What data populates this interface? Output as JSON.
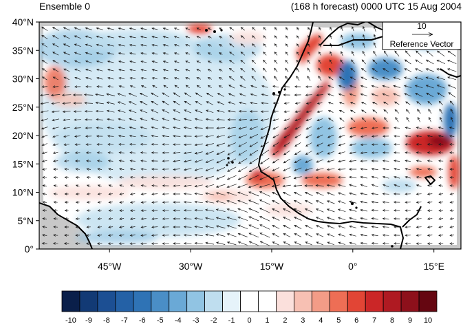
{
  "header": {
    "ensemble_label": "Ensemble 0",
    "forecast_label": "(168 h forecast) 0000 UTC 15 Aug 2004"
  },
  "map": {
    "projection": "cylindrical equidistant",
    "lon_range": [
      -58,
      20
    ],
    "lat_range": [
      0,
      40
    ],
    "lat_ticks": [
      {
        "value": 0,
        "label": "0°"
      },
      {
        "value": 5,
        "label": "5°N"
      },
      {
        "value": 10,
        "label": "10°N"
      },
      {
        "value": 15,
        "label": "15°N"
      },
      {
        "value": 20,
        "label": "20°N"
      },
      {
        "value": 25,
        "label": "25°N"
      },
      {
        "value": 30,
        "label": "30°N"
      },
      {
        "value": 35,
        "label": "35°N"
      },
      {
        "value": 40,
        "label": "40°N"
      }
    ],
    "lon_ticks": [
      {
        "value": -45,
        "label": "45°W"
      },
      {
        "value": -30,
        "label": "30°W"
      },
      {
        "value": -15,
        "label": "15°W"
      },
      {
        "value": 0,
        "label": "0°"
      },
      {
        "value": 15,
        "label": "15°E"
      }
    ],
    "reference_vector": {
      "magnitude": "10",
      "label": "Reference Vector"
    }
  },
  "colorbar": {
    "labels": [
      "-10",
      "-9",
      "-8",
      "-7",
      "-6",
      "-5",
      "-4",
      "-3",
      "-2",
      "-1",
      "0",
      "1",
      "2",
      "3",
      "4",
      "5",
      "6",
      "7",
      "8",
      "9",
      "10"
    ],
    "colors": [
      "#0a1f4a",
      "#123a75",
      "#1c4f93",
      "#2461a6",
      "#2f73b5",
      "#4a8ec6",
      "#6aa9d6",
      "#91c4e3",
      "#bfdeef",
      "#e6f3fa",
      "#ffffff",
      "#ffffff",
      "#fbe0dc",
      "#f7c0b3",
      "#f39c87",
      "#ee6e55",
      "#e24535",
      "#cb2627",
      "#af1a22",
      "#8d101b",
      "#650611"
    ]
  },
  "colors": {
    "land_mask": "#c8c8c8",
    "coast": "#000000",
    "arrow": "#1a1a1a"
  }
}
